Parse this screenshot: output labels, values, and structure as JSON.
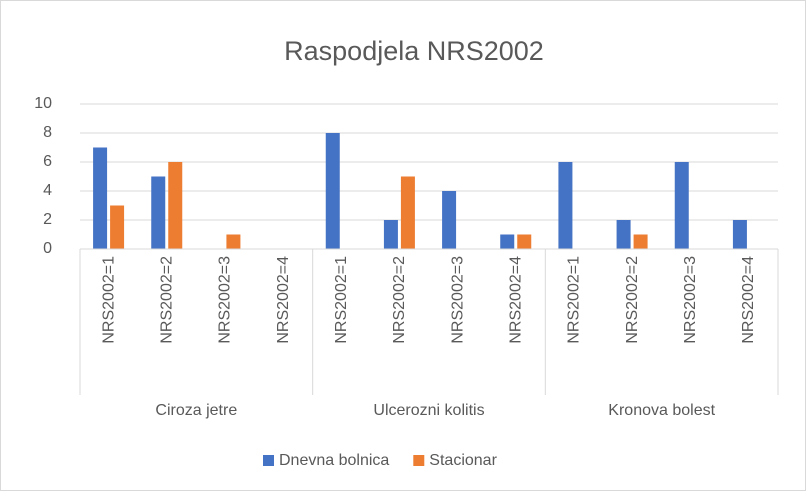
{
  "chart_data": {
    "type": "bar",
    "title": "Raspodjela NRS2002",
    "categories": [
      "NRS2002=1",
      "NRS2002=2",
      "NRS2002=3",
      "NRS2002=4",
      "NRS2002=1",
      "NRS2002=2",
      "NRS2002=3",
      "NRS2002=4",
      "NRS2002=1",
      "NRS2002=2",
      "NRS2002=3",
      "NRS2002=4"
    ],
    "groups": [
      "Ciroza jetre",
      "Ulcerozni kolitis",
      "Kronova bolest"
    ],
    "series": [
      {
        "name": "Dnevna bolnica",
        "color": "#4472c4",
        "values": [
          7,
          5,
          0,
          0,
          8,
          2,
          4,
          1,
          6,
          2,
          6,
          2
        ]
      },
      {
        "name": "Stacionar",
        "color": "#ed7d31",
        "values": [
          3,
          6,
          1,
          0,
          0,
          5,
          0,
          1,
          0,
          1,
          0,
          0
        ]
      }
    ],
    "ylim": [
      0,
      10
    ],
    "yticks": [
      0,
      2,
      4,
      6,
      8,
      10
    ],
    "grid": true,
    "legend": "bottom"
  }
}
